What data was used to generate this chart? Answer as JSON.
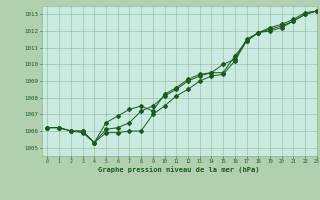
{
  "background_color": "#b0d0b0",
  "plot_bg_color": "#c8eae0",
  "grid_color": "#90b890",
  "line_color": "#1a5c1a",
  "xlabel": "Graphe pression niveau de la mer (hPa)",
  "xlim": [
    -0.5,
    23
  ],
  "ylim": [
    1004.5,
    1013.5
  ],
  "yticks": [
    1005,
    1006,
    1007,
    1008,
    1009,
    1010,
    1011,
    1012,
    1013
  ],
  "xticks": [
    0,
    1,
    2,
    3,
    4,
    5,
    6,
    7,
    8,
    9,
    10,
    11,
    12,
    13,
    14,
    15,
    16,
    17,
    18,
    19,
    20,
    21,
    22,
    23
  ],
  "line1_x": [
    0,
    1,
    2,
    3,
    4,
    5,
    6,
    7,
    8,
    9,
    10,
    11,
    12,
    13,
    14,
    15,
    16,
    17,
    18,
    19,
    20,
    21,
    22,
    23
  ],
  "line1_y": [
    1006.2,
    1006.2,
    1006.0,
    1005.9,
    1005.3,
    1005.9,
    1005.9,
    1006.0,
    1006.0,
    1007.0,
    1007.5,
    1008.1,
    1008.5,
    1009.0,
    1009.3,
    1009.4,
    1010.2,
    1011.4,
    1011.9,
    1012.0,
    1012.2,
    1012.6,
    1013.0,
    1013.2
  ],
  "line2_x": [
    0,
    1,
    2,
    3,
    4,
    5,
    6,
    7,
    8,
    9,
    10,
    11,
    12,
    13,
    14,
    15,
    16,
    17,
    18,
    19,
    20,
    21,
    22,
    23
  ],
  "line2_y": [
    1006.2,
    1006.2,
    1006.0,
    1006.0,
    1005.3,
    1006.1,
    1006.2,
    1006.5,
    1007.2,
    1007.5,
    1008.1,
    1008.5,
    1009.0,
    1009.3,
    1009.5,
    1009.5,
    1010.5,
    1011.4,
    1011.9,
    1012.1,
    1012.3,
    1012.6,
    1013.0,
    1013.2
  ],
  "line3_x": [
    0,
    1,
    2,
    3,
    4,
    5,
    6,
    7,
    8,
    9,
    10,
    11,
    12,
    13,
    14,
    15,
    16,
    17,
    18,
    19,
    20,
    21,
    22,
    23
  ],
  "line3_y": [
    1006.2,
    1006.2,
    1006.0,
    1006.0,
    1005.3,
    1006.5,
    1006.9,
    1007.3,
    1007.5,
    1007.2,
    1008.2,
    1008.6,
    1009.1,
    1009.4,
    1009.5,
    1010.0,
    1010.3,
    1011.5,
    1011.9,
    1012.2,
    1012.4,
    1012.7,
    1013.1,
    1013.2
  ],
  "figwidth": 3.2,
  "figheight": 2.0,
  "dpi": 100
}
